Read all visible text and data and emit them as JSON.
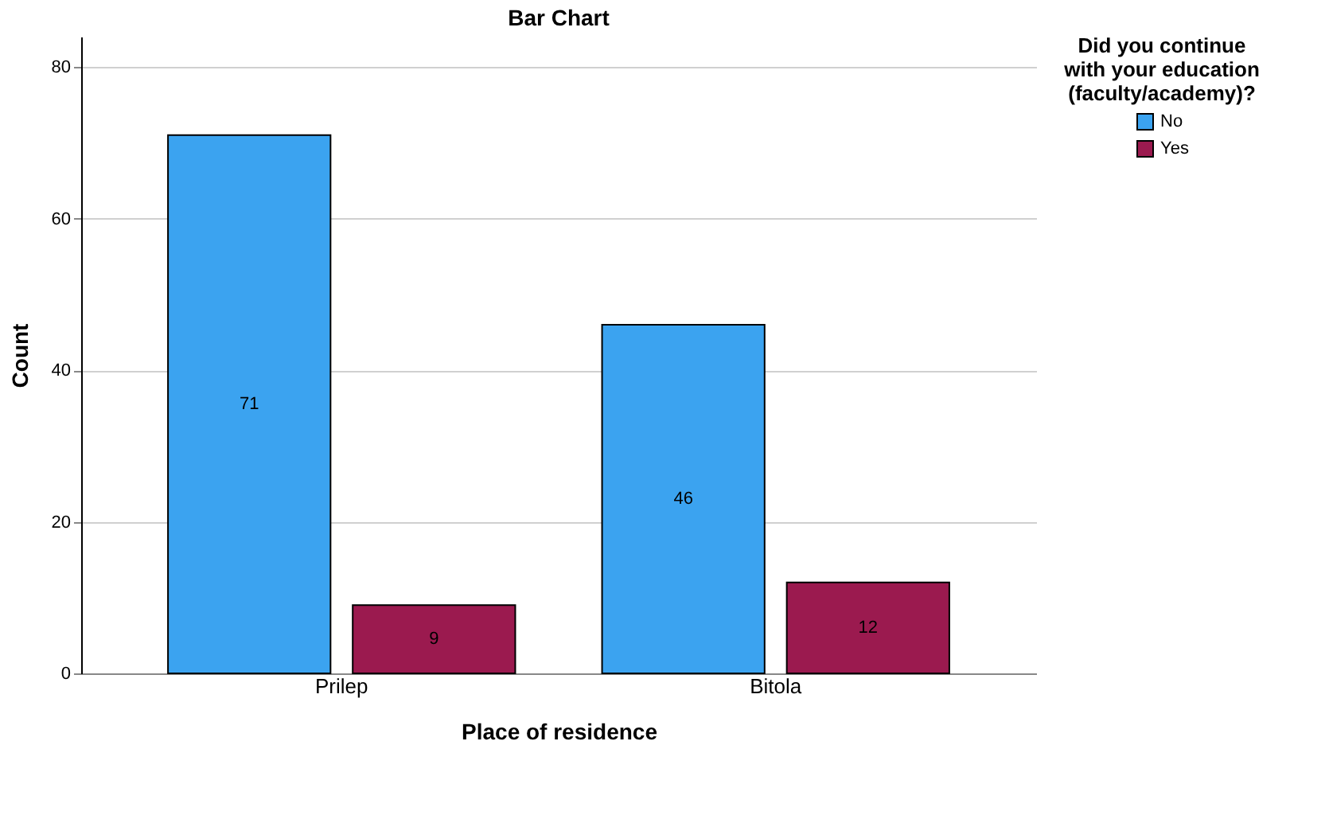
{
  "chart_data": {
    "type": "bar",
    "title": "Bar Chart",
    "xlabel": "Place of residence",
    "ylabel": "Count",
    "legend_title": "Did you continue with your education (faculty/academy)?",
    "categories": [
      "Prilep",
      "Bitola"
    ],
    "series": [
      {
        "name": "No",
        "color": "#3ba3f0",
        "values": [
          71,
          46
        ]
      },
      {
        "name": "Yes",
        "color": "#9b1a4f",
        "values": [
          9,
          12
        ]
      }
    ],
    "ylim": [
      0,
      84
    ],
    "yticks": [
      0,
      20,
      40,
      60,
      80
    ],
    "grid": "y",
    "legend": "top right",
    "data_labels": true
  }
}
